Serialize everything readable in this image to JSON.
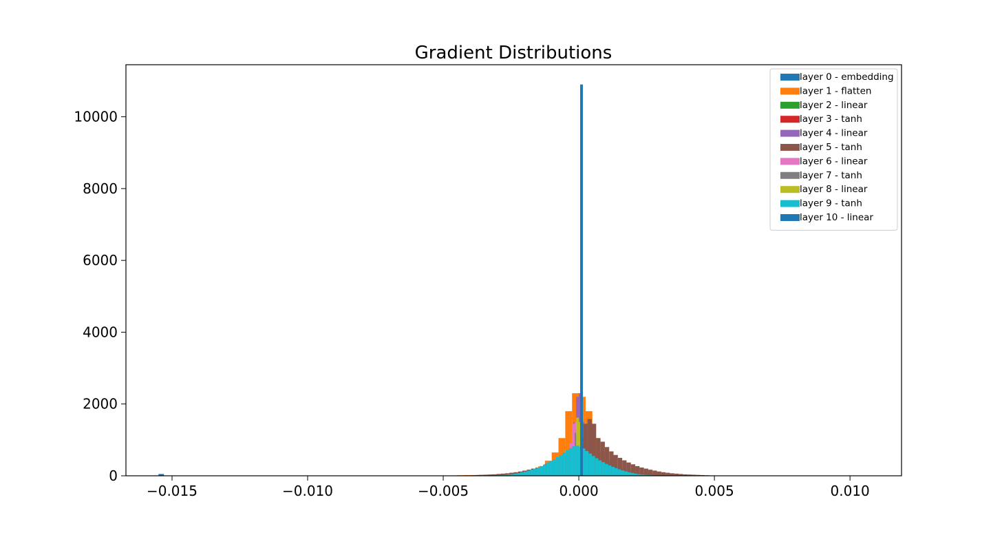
{
  "chart_data": {
    "type": "histogram",
    "title": "Gradient Distributions",
    "xlabel": "",
    "ylabel": "",
    "xlim": [
      -0.0167,
      0.0119
    ],
    "ylim": [
      0,
      11450
    ],
    "xticks": [
      {
        "value": -0.015,
        "label": "−0.015"
      },
      {
        "value": -0.01,
        "label": "−0.010"
      },
      {
        "value": -0.005,
        "label": "−0.005"
      },
      {
        "value": 0.0,
        "label": "0.000"
      },
      {
        "value": 0.005,
        "label": "0.005"
      },
      {
        "value": 0.01,
        "label": "0.010"
      }
    ],
    "yticks": [
      {
        "value": 0,
        "label": "0"
      },
      {
        "value": 2000,
        "label": "2000"
      },
      {
        "value": 4000,
        "label": "4000"
      },
      {
        "value": 6000,
        "label": "6000"
      },
      {
        "value": 8000,
        "label": "8000"
      },
      {
        "value": 10000,
        "label": "10000"
      }
    ],
    "grid": false,
    "legend_position": "top-right",
    "series": [
      {
        "name": "layer 0 - embedding",
        "color": "#1f77b4",
        "bins": [
          {
            "x0": -0.0155,
            "x1": -0.0153,
            "count": 50
          },
          {
            "x0": 0.0002,
            "x1": 0.0003,
            "count": 220
          }
        ]
      },
      {
        "name": "layer 1 - flatten",
        "color": "#ff7f0e",
        "x_start": -0.005,
        "bin_width": 0.00025,
        "counts": [
          10,
          10,
          15,
          20,
          20,
          25,
          30,
          40,
          50,
          60,
          80,
          100,
          130,
          180,
          260,
          420,
          650,
          1050,
          1800,
          2300,
          2200,
          1800,
          1050,
          650,
          420,
          260,
          180,
          130,
          100,
          80,
          60,
          50,
          40,
          30,
          25,
          20,
          20,
          15,
          10,
          10
        ]
      },
      {
        "name": "layer 2 - linear",
        "color": "#2ca02c",
        "x_start": -0.0004,
        "bin_width": 0.0002,
        "counts": [
          700,
          1300,
          1200,
          700
        ]
      },
      {
        "name": "layer 3 - tanh",
        "color": "#d62728",
        "x_start": -0.0004,
        "bin_width": 0.0002,
        "counts": [
          600,
          1200,
          1100,
          600
        ]
      },
      {
        "name": "layer 4 - linear",
        "color": "#9467bd",
        "x_start": -0.0002,
        "bin_width": 0.0001,
        "counts": [
          1500,
          2200,
          2300,
          1500
        ]
      },
      {
        "name": "layer 5 - tanh",
        "color": "#8c564b",
        "x_start": -0.004,
        "bin_width": 0.00016,
        "counts": [
          15,
          20,
          25,
          30,
          35,
          40,
          50,
          60,
          70,
          85,
          100,
          120,
          145,
          170,
          200,
          230,
          270,
          320,
          370,
          430,
          500,
          580,
          680,
          800,
          950,
          1050,
          1450,
          1580,
          1450,
          1050,
          950,
          800,
          680,
          580,
          500,
          430,
          370,
          320,
          270,
          230,
          200,
          170,
          145,
          120,
          100,
          85,
          70,
          60,
          50,
          40,
          35,
          30,
          25,
          20,
          15,
          10
        ]
      },
      {
        "name": "layer 6 - linear",
        "color": "#e377c2",
        "x_start": -0.00035,
        "bin_width": 0.0001,
        "counts": [
          900,
          1450,
          1500,
          1350,
          950,
          600,
          350
        ]
      },
      {
        "name": "layer 7 - tanh",
        "color": "#7f7f7f",
        "x_start": -0.00015,
        "bin_width": 0.0001,
        "counts": [
          1200,
          1350,
          1100
        ]
      },
      {
        "name": "layer 8 - linear",
        "color": "#bcbd22",
        "x_start": -0.0001,
        "bin_width": 0.0001,
        "counts": [
          1620,
          1500
        ]
      },
      {
        "name": "layer 9 - tanh",
        "color": "#17becf",
        "x_start": -0.003,
        "bin_width": 0.00012,
        "counts": [
          15,
          20,
          25,
          35,
          45,
          60,
          75,
          95,
          115,
          140,
          170,
          200,
          230,
          270,
          310,
          360,
          410,
          460,
          520,
          580,
          650,
          720,
          770,
          820,
          840,
          810,
          760,
          690,
          620,
          550,
          490,
          430,
          380,
          330,
          290,
          250,
          215,
          180,
          150,
          125,
          100,
          80,
          60,
          45,
          35,
          25,
          20,
          15,
          10,
          10
        ]
      },
      {
        "name": "layer 10 - linear",
        "color": "#1f77b4",
        "bins": [
          {
            "x0": 5e-05,
            "x1": 0.00015,
            "count": 10900
          }
        ]
      }
    ]
  }
}
